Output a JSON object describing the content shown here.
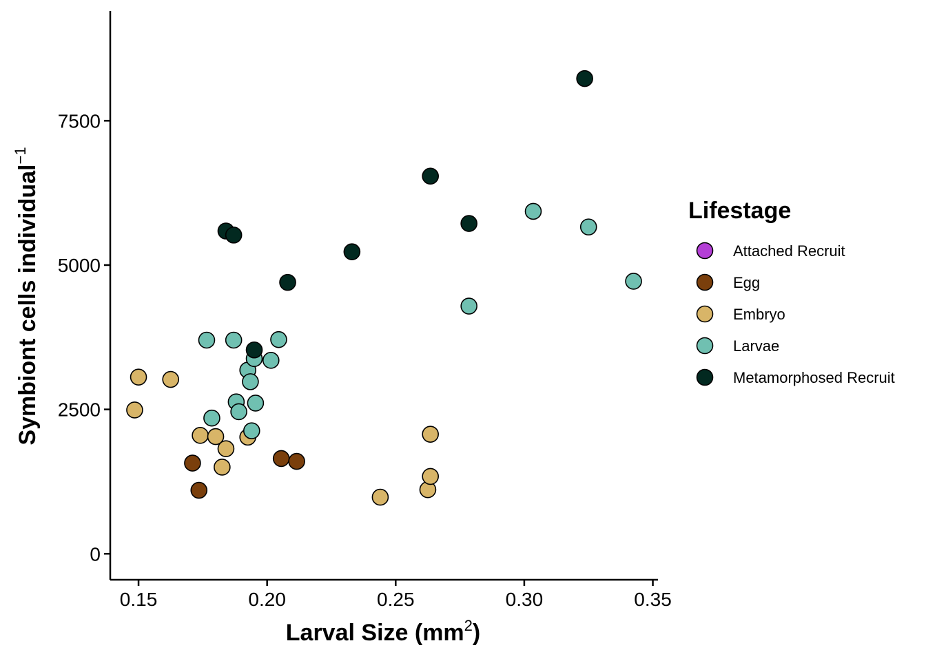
{
  "chart_data": {
    "type": "scatter",
    "title": "",
    "xlabel": "Larval Size (mm",
    "xlabel_sup": "2",
    "xlabel_suffix": ")",
    "ylabel": "Symbiont cells individual",
    "ylabel_sup": "−1",
    "xlim": [
      0.139,
      0.352
    ],
    "ylim": [
      -450,
      9400
    ],
    "xticks": [
      0.15,
      0.2,
      0.25,
      0.3,
      0.35
    ],
    "xtick_labels": [
      "0.15",
      "0.20",
      "0.25",
      "0.30",
      "0.35"
    ],
    "yticks": [
      0,
      2500,
      5000,
      7500
    ],
    "ytick_labels": [
      "0",
      "2500",
      "5000",
      "7500"
    ],
    "grid": false,
    "legend": {
      "title": "Lifestage",
      "placement": "right",
      "entries": [
        {
          "name": "Attached Recruit",
          "color": "#B43FD6"
        },
        {
          "name": "Egg",
          "color": "#7A3F0C"
        },
        {
          "name": "Embryo",
          "color": "#D8B568"
        },
        {
          "name": "Larvae",
          "color": "#70C0B1"
        },
        {
          "name": "Metamorphosed Recruit",
          "color": "#022920"
        }
      ]
    },
    "series": [
      {
        "name": "Egg",
        "color": "#7A3F0C",
        "points": [
          [
            0.171,
            1570
          ],
          [
            0.1735,
            1100
          ],
          [
            0.2055,
            1650
          ],
          [
            0.2115,
            1600
          ]
        ]
      },
      {
        "name": "Embryo",
        "color": "#D8B568",
        "points": [
          [
            0.1485,
            2490
          ],
          [
            0.15,
            3060
          ],
          [
            0.1625,
            3020
          ],
          [
            0.174,
            2050
          ],
          [
            0.18,
            2030
          ],
          [
            0.1825,
            1500
          ],
          [
            0.184,
            1820
          ],
          [
            0.1925,
            2020
          ],
          [
            0.244,
            980
          ],
          [
            0.2625,
            1110
          ],
          [
            0.2635,
            2070
          ],
          [
            0.2635,
            1340
          ]
        ]
      },
      {
        "name": "Larvae",
        "color": "#70C0B1",
        "points": [
          [
            0.1765,
            3700
          ],
          [
            0.1785,
            2350
          ],
          [
            0.187,
            3700
          ],
          [
            0.188,
            2630
          ],
          [
            0.189,
            2460
          ],
          [
            0.1925,
            3180
          ],
          [
            0.1935,
            2980
          ],
          [
            0.194,
            2130
          ],
          [
            0.195,
            3380
          ],
          [
            0.1955,
            2610
          ],
          [
            0.2015,
            3350
          ],
          [
            0.2045,
            3710
          ],
          [
            0.2785,
            4290
          ],
          [
            0.3035,
            5930
          ],
          [
            0.325,
            5660
          ],
          [
            0.3425,
            4720
          ]
        ]
      },
      {
        "name": "Metamorphosed Recruit",
        "color": "#022920",
        "points": [
          [
            0.184,
            5590
          ],
          [
            0.187,
            5520
          ],
          [
            0.195,
            3530
          ],
          [
            0.208,
            4700
          ],
          [
            0.233,
            5230
          ],
          [
            0.2635,
            6540
          ],
          [
            0.2785,
            5720
          ],
          [
            0.3235,
            8230
          ]
        ]
      }
    ]
  }
}
